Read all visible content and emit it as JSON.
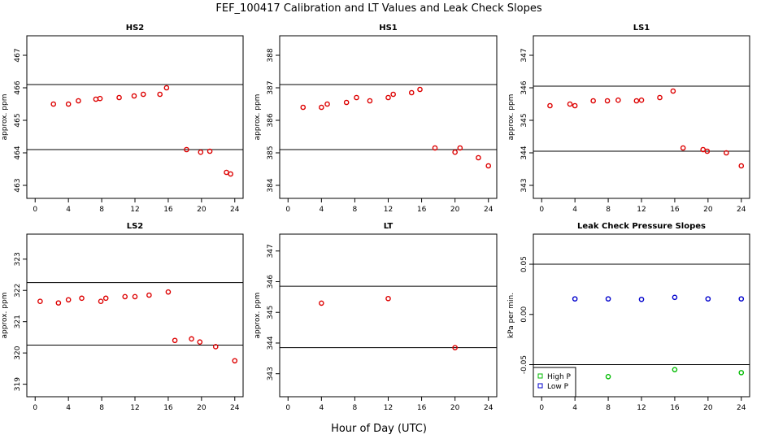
{
  "figure": {
    "title": "FEF_100417  Calibration and LT Values and Leak Check Slopes",
    "xlabel": "Hour of Day (UTC)"
  },
  "colors": {
    "cal_points": "#dd0000",
    "high_p": "#00bb00",
    "low_p": "#0000cc",
    "ref_lines": "#000000"
  },
  "chart_data": [
    {
      "type": "scatter",
      "title": "HS2",
      "ylabel": "approx. ppm",
      "xlim": [
        -1,
        25
      ],
      "ylim": [
        462.6,
        467.6
      ],
      "xticks": [
        0,
        4,
        8,
        12,
        16,
        20,
        24
      ],
      "yticks": [
        463,
        464,
        465,
        466,
        467
      ],
      "hlines": [
        464.1,
        466.1
      ],
      "series": [
        {
          "marker": "circle",
          "color": "#dd0000",
          "x": [
            2.2,
            4.0,
            5.2,
            7.3,
            7.8,
            10.1,
            11.9,
            13.0,
            15.0,
            15.8,
            18.2,
            19.9,
            21.0,
            23.0,
            23.5
          ],
          "y": [
            465.5,
            465.5,
            465.6,
            465.65,
            465.67,
            465.7,
            465.75,
            465.8,
            465.8,
            466.0,
            464.1,
            464.02,
            464.05,
            463.4,
            463.35
          ]
        }
      ]
    },
    {
      "type": "scatter",
      "title": "HS1",
      "ylabel": "approx. ppm",
      "xlim": [
        -1,
        25
      ],
      "ylim": [
        383.6,
        388.6
      ],
      "xticks": [
        0,
        4,
        8,
        12,
        16,
        20,
        24
      ],
      "yticks": [
        384,
        385,
        386,
        387,
        388
      ],
      "hlines": [
        385.1,
        387.1
      ],
      "series": [
        {
          "marker": "circle",
          "color": "#dd0000",
          "x": [
            1.8,
            4.0,
            4.7,
            7.0,
            8.2,
            9.8,
            12.0,
            12.6,
            14.8,
            15.8,
            17.6,
            20.0,
            20.6,
            22.8,
            24.0
          ],
          "y": [
            386.4,
            386.4,
            386.5,
            386.55,
            386.7,
            386.6,
            386.7,
            386.8,
            386.85,
            386.95,
            385.15,
            385.02,
            385.15,
            384.85,
            384.6
          ]
        }
      ]
    },
    {
      "type": "scatter",
      "title": "LS1",
      "ylabel": "approx. ppm",
      "xlim": [
        -1,
        25
      ],
      "ylim": [
        342.6,
        347.6
      ],
      "xticks": [
        0,
        4,
        8,
        12,
        16,
        20,
        24
      ],
      "yticks": [
        343,
        344,
        345,
        346,
        347
      ],
      "hlines": [
        344.05,
        346.05
      ],
      "series": [
        {
          "marker": "circle",
          "color": "#dd0000",
          "x": [
            1.0,
            3.4,
            4.0,
            6.2,
            7.9,
            9.2,
            11.4,
            12.0,
            14.2,
            15.8,
            17.0,
            19.4,
            19.9,
            22.2,
            24.0
          ],
          "y": [
            345.45,
            345.5,
            345.45,
            345.6,
            345.6,
            345.62,
            345.6,
            345.62,
            345.7,
            345.9,
            344.15,
            344.1,
            344.05,
            344.0,
            343.6
          ]
        }
      ]
    },
    {
      "type": "scatter",
      "title": "LS2",
      "ylabel": "approx. ppm",
      "xlim": [
        -1,
        25
      ],
      "ylim": [
        318.6,
        323.8
      ],
      "xticks": [
        0,
        4,
        8,
        12,
        16,
        20,
        24
      ],
      "yticks": [
        319,
        320,
        321,
        322,
        323
      ],
      "hlines": [
        320.25,
        322.25
      ],
      "series": [
        {
          "marker": "circle",
          "color": "#dd0000",
          "x": [
            0.6,
            2.8,
            4.0,
            5.6,
            7.9,
            8.5,
            10.8,
            12.0,
            13.7,
            16.0,
            16.8,
            18.8,
            19.8,
            21.7,
            24.0
          ],
          "y": [
            321.65,
            321.6,
            321.7,
            321.75,
            321.65,
            321.75,
            321.8,
            321.8,
            321.85,
            321.95,
            320.4,
            320.45,
            320.35,
            320.2,
            319.75
          ]
        }
      ]
    },
    {
      "type": "scatter",
      "title": "LT",
      "ylabel": "approx. ppm",
      "xlim": [
        -1,
        25
      ],
      "ylim": [
        342.25,
        347.55
      ],
      "xticks": [
        0,
        4,
        8,
        12,
        16,
        20,
        24
      ],
      "yticks": [
        343,
        344,
        345,
        346,
        347
      ],
      "hlines": [
        343.85,
        345.85
      ],
      "series": [
        {
          "marker": "circle",
          "color": "#dd0000",
          "x": [
            4.0,
            12.0,
            20.0
          ],
          "y": [
            345.3,
            345.45,
            343.85
          ]
        }
      ]
    },
    {
      "type": "scatter",
      "title": "Leak Check Pressure Slopes",
      "ylabel": "kPa per min.",
      "xlim": [
        -1,
        25
      ],
      "ylim": [
        -0.082,
        0.08
      ],
      "xticks": [
        0,
        4,
        8,
        12,
        16,
        20,
        24
      ],
      "yticks": [
        -0.05,
        0.0,
        0.05
      ],
      "ytick_labels": [
        "-0.05",
        "0.00",
        "0.05"
      ],
      "hlines": [
        -0.05,
        0.05
      ],
      "legend": {
        "position": "bottom-left",
        "entries": [
          "High P",
          "Low P"
        ]
      },
      "series": [
        {
          "name": "High P",
          "marker": "circle",
          "color": "#00bb00",
          "x": [
            8.0,
            16.0,
            24.0
          ],
          "y": [
            -0.062,
            -0.055,
            -0.058
          ]
        },
        {
          "name": "Low P",
          "marker": "circle",
          "color": "#0000cc",
          "x": [
            4.0,
            8.0,
            12.0,
            16.0,
            20.0,
            24.0
          ],
          "y": [
            0.0155,
            0.0155,
            0.015,
            0.017,
            0.0155,
            0.0155
          ]
        }
      ]
    }
  ]
}
